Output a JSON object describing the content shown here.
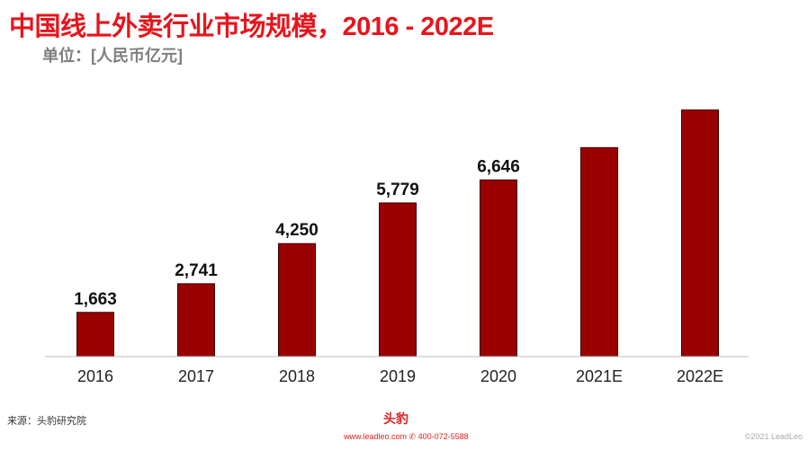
{
  "header": {
    "title": "中国线上外卖行业市场规模，2016 - 2022E",
    "unit": "单位：[人民币亿元]"
  },
  "footer": {
    "source": "来源：头豹研究院",
    "logo_text": "头豹",
    "website": "www.leadleo.com",
    "phone": "400-072-5588",
    "copyright": "©2021 LeadLeo"
  },
  "colors": {
    "bar": "#990000",
    "title": "#e8141b"
  },
  "chart_data": {
    "type": "bar",
    "title": "中国线上外卖行业市场规模，2016 - 2022E",
    "ylabel": "单位：[人民币亿元]",
    "xlabel": "",
    "categories": [
      "2016",
      "2017",
      "2018",
      "2019",
      "2020",
      "2021E",
      "2022E"
    ],
    "values": [
      1663,
      2741,
      4250,
      5779,
      6646,
      7860,
      9280
    ],
    "data_labels": [
      "1,663",
      "2,741",
      "4,250",
      "5,779",
      "6,646",
      "",
      ""
    ],
    "ylim": [
      0,
      10000
    ],
    "grid": false,
    "legend": "none"
  }
}
